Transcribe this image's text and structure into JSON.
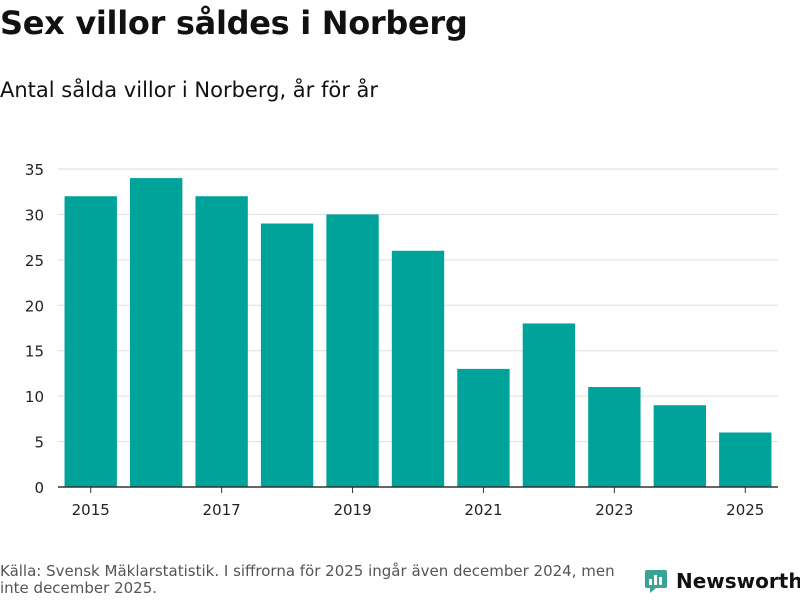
{
  "header": {
    "title": "Sex villor såldes i Norberg",
    "subtitle": "Antal sålda villor i Norberg, år för år"
  },
  "footer": {
    "source": "Källa: Svensk Mäklarstatistik. I siffrorna för 2025 ingår även december 2024, men inte december 2025."
  },
  "brand": {
    "name": "Newsworthy",
    "icon": "newsworthy-logo-icon",
    "color": "#3aa394"
  },
  "colors": {
    "bar": "#00a39a",
    "grid": "#dddddd",
    "axis": "#333333"
  },
  "chart_data": {
    "type": "bar",
    "title": "Sex villor såldes i Norberg",
    "subtitle": "Antal sålda villor i Norberg, år för år",
    "xlabel": "",
    "ylabel": "",
    "categories": [
      2015,
      2016,
      2017,
      2018,
      2019,
      2020,
      2021,
      2022,
      2023,
      2024,
      2025
    ],
    "values": [
      32,
      34,
      32,
      29,
      30,
      26,
      13,
      18,
      11,
      9,
      6
    ],
    "x_tick_labels": [
      "2015",
      "2017",
      "2019",
      "2021",
      "2023",
      "2025"
    ],
    "y_ticks": [
      0,
      5,
      10,
      15,
      20,
      25,
      30,
      35
    ],
    "ylim": [
      0,
      35
    ],
    "grid": true,
    "legend": "none"
  }
}
